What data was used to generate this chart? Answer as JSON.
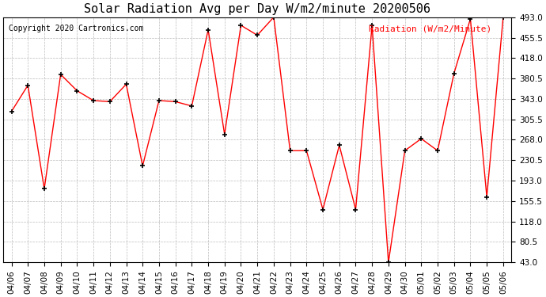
{
  "title": "Solar Radiation Avg per Day W/m2/minute 20200506",
  "copyright": "Copyright 2020 Cartronics.com",
  "legend_label": "Radiation (W/m2/Minute)",
  "dates": [
    "04/06",
    "04/07",
    "04/08",
    "04/09",
    "04/10",
    "04/11",
    "04/12",
    "04/13",
    "04/14",
    "04/15",
    "04/16",
    "04/17",
    "04/18",
    "04/19",
    "04/20",
    "04/21",
    "04/22",
    "04/23",
    "04/24",
    "04/25",
    "04/26",
    "04/27",
    "04/28",
    "04/29",
    "04/30",
    "05/01",
    "05/02",
    "05/03",
    "05/04",
    "05/05",
    "05/06"
  ],
  "values": [
    320,
    368,
    178,
    388,
    358,
    340,
    338,
    370,
    220,
    340,
    338,
    330,
    470,
    278,
    478,
    460,
    493,
    248,
    248,
    140,
    258,
    140,
    478,
    43,
    248,
    270,
    248,
    390,
    490,
    163,
    493
  ],
  "line_color": "#ff0000",
  "marker_color": "#000000",
  "bg_color": "#ffffff",
  "grid_color": "#bbbbbb",
  "yticks": [
    43.0,
    80.5,
    118.0,
    155.5,
    193.0,
    230.5,
    268.0,
    305.5,
    343.0,
    380.5,
    418.0,
    455.5,
    493.0
  ],
  "ylim": [
    43.0,
    493.0
  ],
  "title_fontsize": 11,
  "tick_fontsize": 7.5,
  "copyright_fontsize": 7,
  "legend_fontsize": 8
}
